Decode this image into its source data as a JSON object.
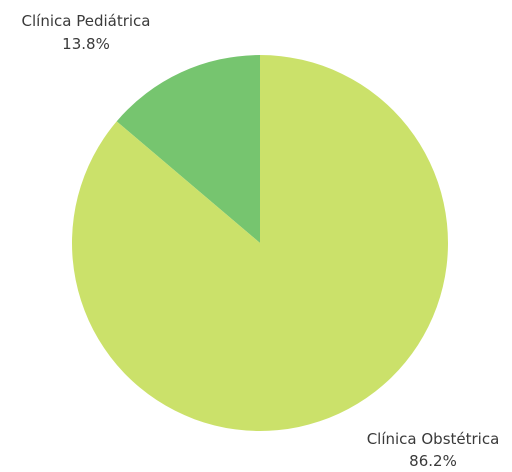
{
  "chart_data": {
    "type": "pie",
    "slices": [
      {
        "label": "Clínica Pediátrica",
        "value": 13.8,
        "value_label": "13.8%",
        "color": "#76C56F"
      },
      {
        "label": "Clínica Obstétrica",
        "value": 86.2,
        "value_label": "86.2%",
        "color": "#CBE16A"
      }
    ],
    "start_angle": "12 o'clock",
    "direction": "counterclockwise",
    "legend": "none"
  }
}
